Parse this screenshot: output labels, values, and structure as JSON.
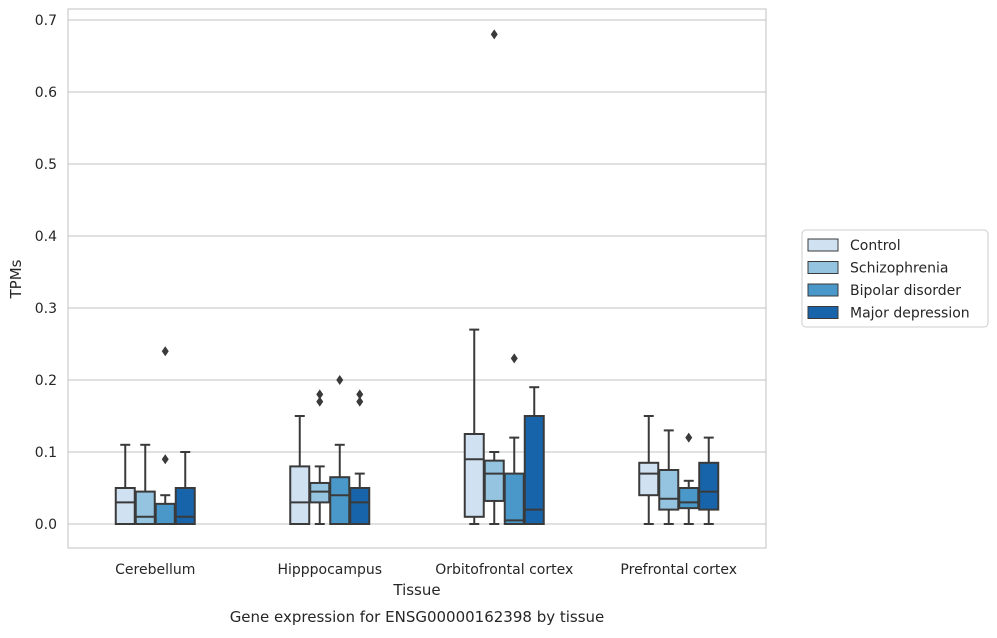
{
  "chart_data": {
    "type": "box",
    "categories": [
      "Cerebellum",
      "Hipppocampus",
      "Orbitofrontal cortex",
      "Prefrontal cortex"
    ],
    "xlabel": "Tissue",
    "ylabel": "TPMs",
    "caption": "Gene expression for ENSG00000162398 by tissue",
    "ylim": [
      -0.033,
      0.715
    ],
    "yticks": [
      0.0,
      0.1,
      0.2,
      0.3,
      0.4,
      0.5,
      0.6,
      0.7
    ],
    "ytick_labels": [
      "0.0",
      "0.1",
      "0.2",
      "0.3",
      "0.4",
      "0.5",
      "0.6",
      "0.7"
    ],
    "grid": "horizontal",
    "legend_position": "right",
    "series": [
      {
        "name": "Control",
        "color": "#d0e1f2",
        "boxes": [
          {
            "whislo": 0.0,
            "q1": 0.0,
            "med": 0.03,
            "q3": 0.05,
            "whishi": 0.11,
            "fliers": []
          },
          {
            "whislo": 0.0,
            "q1": 0.0,
            "med": 0.03,
            "q3": 0.08,
            "whishi": 0.15,
            "fliers": []
          },
          {
            "whislo": 0.0,
            "q1": 0.01,
            "med": 0.09,
            "q3": 0.125,
            "whishi": 0.27,
            "fliers": []
          },
          {
            "whislo": 0.0,
            "q1": 0.04,
            "med": 0.07,
            "q3": 0.085,
            "whishi": 0.15,
            "fliers": []
          }
        ]
      },
      {
        "name": "Schizophrenia",
        "color": "#94c4df",
        "boxes": [
          {
            "whislo": 0.0,
            "q1": 0.0,
            "med": 0.01,
            "q3": 0.045,
            "whishi": 0.11,
            "fliers": []
          },
          {
            "whislo": 0.0,
            "q1": 0.03,
            "med": 0.045,
            "q3": 0.057,
            "whishi": 0.08,
            "fliers": [
              0.17,
              0.18
            ]
          },
          {
            "whislo": 0.0,
            "q1": 0.032,
            "med": 0.07,
            "q3": 0.088,
            "whishi": 0.1,
            "fliers": [
              0.68
            ]
          },
          {
            "whislo": 0.0,
            "q1": 0.02,
            "med": 0.035,
            "q3": 0.075,
            "whishi": 0.13,
            "fliers": []
          }
        ]
      },
      {
        "name": "Bipolar disorder",
        "color": "#4a98c9",
        "boxes": [
          {
            "whislo": 0.0,
            "q1": 0.0,
            "med": 0.0,
            "q3": 0.028,
            "whishi": 0.04,
            "fliers": [
              0.09,
              0.24
            ]
          },
          {
            "whislo": 0.0,
            "q1": 0.0,
            "med": 0.04,
            "q3": 0.065,
            "whishi": 0.11,
            "fliers": [
              0.2
            ]
          },
          {
            "whislo": 0.0,
            "q1": 0.0,
            "med": 0.005,
            "q3": 0.07,
            "whishi": 0.12,
            "fliers": [
              0.23
            ]
          },
          {
            "whislo": 0.0,
            "q1": 0.022,
            "med": 0.03,
            "q3": 0.05,
            "whishi": 0.06,
            "fliers": [
              0.12
            ]
          }
        ]
      },
      {
        "name": "Major depression",
        "color": "#1764ab",
        "boxes": [
          {
            "whislo": 0.0,
            "q1": 0.0,
            "med": 0.01,
            "q3": 0.05,
            "whishi": 0.1,
            "fliers": []
          },
          {
            "whislo": 0.0,
            "q1": 0.0,
            "med": 0.03,
            "q3": 0.05,
            "whishi": 0.07,
            "fliers": [
              0.17,
              0.18
            ]
          },
          {
            "whislo": 0.0,
            "q1": 0.0,
            "med": 0.02,
            "q3": 0.15,
            "whishi": 0.19,
            "fliers": []
          },
          {
            "whislo": 0.0,
            "q1": 0.02,
            "med": 0.045,
            "q3": 0.085,
            "whishi": 0.12,
            "fliers": []
          }
        ]
      }
    ]
  }
}
